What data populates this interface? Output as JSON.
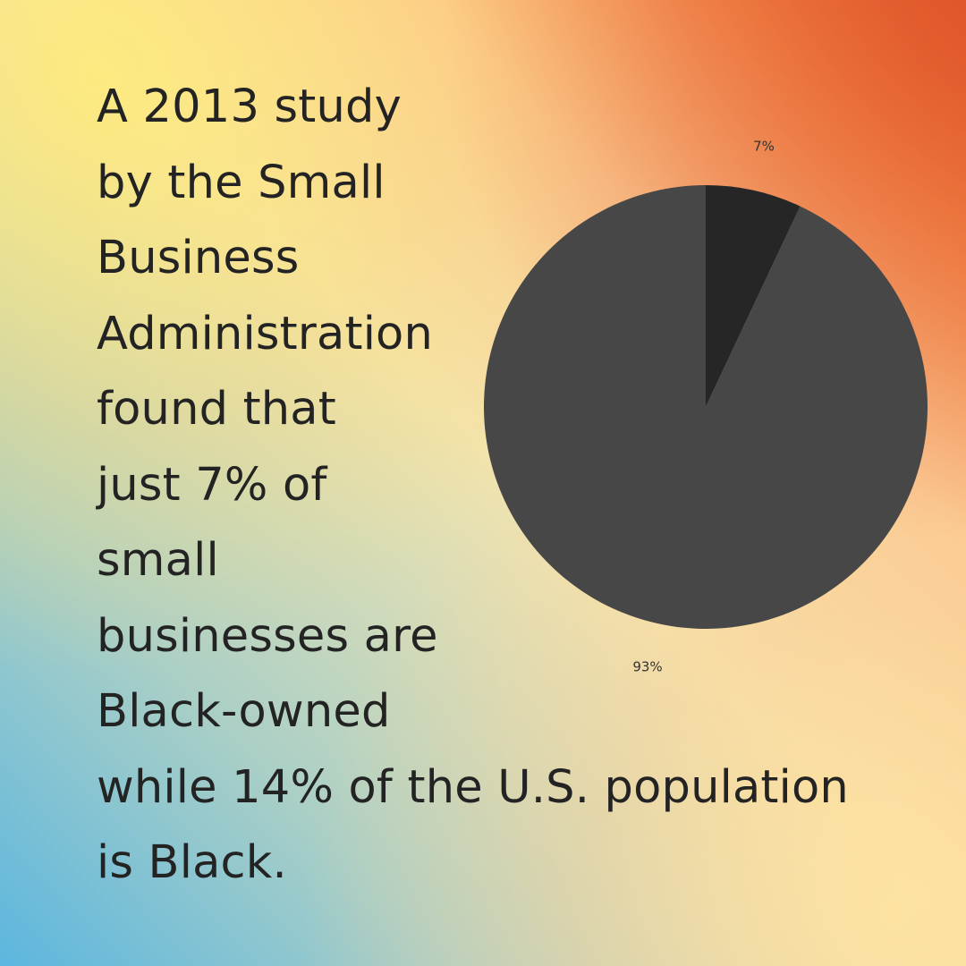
{
  "colors": {
    "text": "#232323",
    "slice_small": "#262626",
    "slice_large": "#474747",
    "label": "#333333"
  },
  "text_lines": [
    "A 2013 study",
    "by the Small",
    "Business",
    "Administration",
    "found that",
    "just 7% of",
    "small",
    "businesses are",
    "Black-owned",
    "while 14% of the U.S. population",
    "is Black."
  ],
  "chart_data": {
    "type": "pie",
    "title": "",
    "slices": [
      {
        "value": 7,
        "label": "7%",
        "color": "#262626"
      },
      {
        "value": 93,
        "label": "93%",
        "color": "#474747"
      }
    ]
  }
}
